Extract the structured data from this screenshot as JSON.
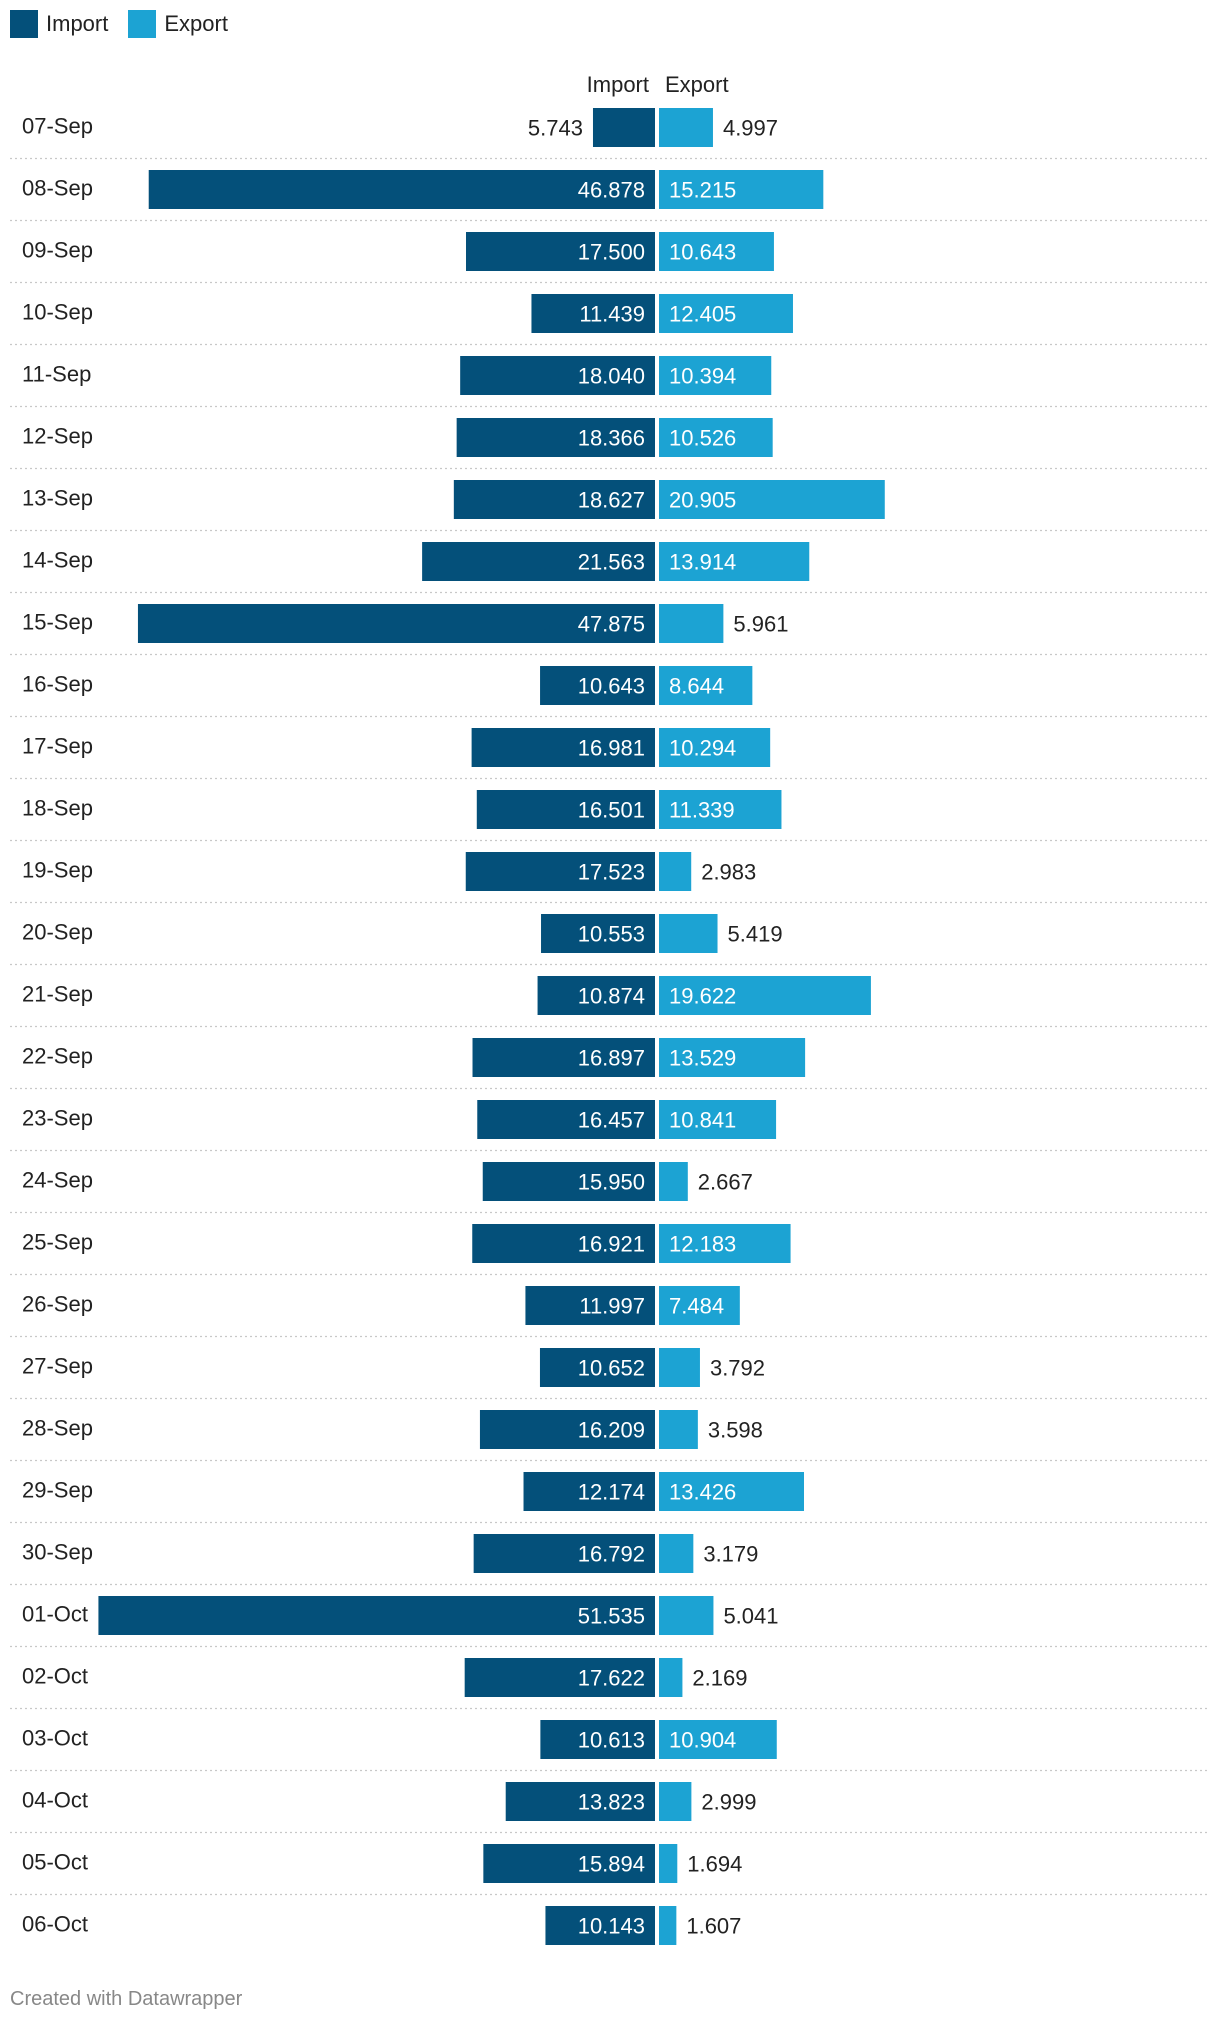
{
  "legend": {
    "import_label": "Import",
    "export_label": "Export"
  },
  "colors": {
    "import": "#04507a",
    "export": "#1ca3d3",
    "grid": "#c8c8c8"
  },
  "footer": {
    "credit": "Created with Datawrapper"
  },
  "chart_data": {
    "type": "bar",
    "orientation": "horizontal-diverging",
    "column_headers": {
      "import": "Import",
      "export": "Export"
    },
    "categories": [
      "07-Sep",
      "08-Sep",
      "09-Sep",
      "10-Sep",
      "11-Sep",
      "12-Sep",
      "13-Sep",
      "14-Sep",
      "15-Sep",
      "16-Sep",
      "17-Sep",
      "18-Sep",
      "19-Sep",
      "20-Sep",
      "21-Sep",
      "22-Sep",
      "23-Sep",
      "24-Sep",
      "25-Sep",
      "26-Sep",
      "27-Sep",
      "28-Sep",
      "29-Sep",
      "30-Sep",
      "01-Oct",
      "02-Oct",
      "03-Oct",
      "04-Oct",
      "05-Oct",
      "06-Oct"
    ],
    "series": [
      {
        "name": "Import",
        "values": [
          5.743,
          46.878,
          17.5,
          11.439,
          18.04,
          18.366,
          18.627,
          21.563,
          47.875,
          10.643,
          16.981,
          16.501,
          17.523,
          10.553,
          10.874,
          16.897,
          16.457,
          15.95,
          16.921,
          11.997,
          10.652,
          16.209,
          12.174,
          16.792,
          51.535,
          17.622,
          10.613,
          13.823,
          15.894,
          10.143
        ],
        "labels": [
          "5.743",
          "46.878",
          "17.500",
          "11.439",
          "18.040",
          "18.366",
          "18.627",
          "21.563",
          "47.875",
          "10.643",
          "16.981",
          "16.501",
          "17.523",
          "10.553",
          "10.874",
          "16.897",
          "16.457",
          "15.950",
          "16.921",
          "11.997",
          "10.652",
          "16.209",
          "12.174",
          "16.792",
          "51.535",
          "17.622",
          "10.613",
          "13.823",
          "15.894",
          "10.143"
        ]
      },
      {
        "name": "Export",
        "values": [
          4.997,
          15.215,
          10.643,
          12.405,
          10.394,
          10.526,
          20.905,
          13.914,
          5.961,
          8.644,
          10.294,
          11.339,
          2.983,
          5.419,
          19.622,
          13.529,
          10.841,
          2.667,
          12.183,
          7.484,
          3.792,
          3.598,
          13.426,
          3.179,
          5.041,
          2.169,
          10.904,
          2.999,
          1.694,
          1.607
        ],
        "labels": [
          "4.997",
          "15.215",
          "10.643",
          "12.405",
          "10.394",
          "10.526",
          "20.905",
          "13.914",
          "5.961",
          "8.644",
          "10.294",
          "11.339",
          "2.983",
          "5.419",
          "19.622",
          "13.529",
          "10.841",
          "2.667",
          "12.183",
          "7.484",
          "3.792",
          "3.598",
          "13.426",
          "3.179",
          "5.041",
          "2.169",
          "10.904",
          "2.999",
          "1.694",
          "1.607"
        ]
      }
    ],
    "legend_position": "top-left"
  }
}
